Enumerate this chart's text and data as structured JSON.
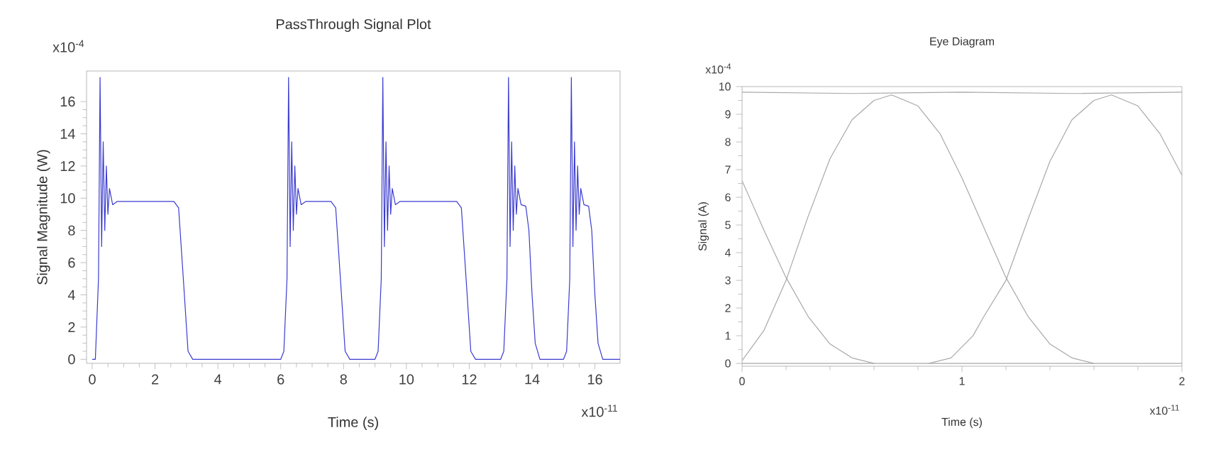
{
  "chart_data": [
    {
      "type": "line",
      "title": "PassThrough Signal Plot",
      "xlabel": "Time (s)",
      "ylabel": "Signal Magnitude (W)",
      "xlim": [
        -0.18,
        16.8
      ],
      "ylim": [
        -0.25,
        17.9
      ],
      "xticks": [
        0,
        2,
        4,
        6,
        8,
        10,
        12,
        14,
        16
      ],
      "yticks": [
        0,
        2,
        4,
        6,
        8,
        10,
        12,
        14,
        16
      ],
      "annotations": [
        "x10$^{-4}$",
        "x10$^{-11}$"
      ],
      "series": [
        {
          "color": "#3b3bd0",
          "x": [
            0,
            0.1,
            0.2,
            0.25,
            0.3,
            0.35,
            0.4,
            0.45,
            0.5,
            0.55,
            0.65,
            0.8,
            2.6,
            2.75,
            2.9,
            3.05,
            3.2,
            6.0,
            6.1,
            6.2,
            6.25,
            6.3,
            6.35,
            6.4,
            6.45,
            6.5,
            6.55,
            6.65,
            6.8,
            7.6,
            7.75,
            7.9,
            8.05,
            8.2,
            9.0,
            9.1,
            9.2,
            9.25,
            9.3,
            9.35,
            9.4,
            9.45,
            9.5,
            9.55,
            9.65,
            9.8,
            11.6,
            11.75,
            11.9,
            12.05,
            12.2,
            13.0,
            13.1,
            13.2,
            13.25,
            13.3,
            13.35,
            13.4,
            13.45,
            13.5,
            13.55,
            13.65,
            13.8,
            13.9,
            14.0,
            14.1,
            14.25,
            15.0,
            15.1,
            15.2,
            15.25,
            15.3,
            15.35,
            15.4,
            15.45,
            15.5,
            15.55,
            15.65,
            15.8,
            15.9,
            16.0,
            16.1,
            16.25,
            16.8
          ],
          "values": [
            0,
            0,
            5,
            17.5,
            7,
            13.5,
            8,
            12,
            9,
            10.6,
            9.6,
            9.8,
            9.8,
            9.4,
            5,
            0.5,
            0,
            0,
            0.5,
            5,
            17.5,
            7,
            13.5,
            8,
            12,
            9,
            10.6,
            9.6,
            9.8,
            9.8,
            9.4,
            5,
            0.5,
            0,
            0,
            0.5,
            5,
            17.5,
            7,
            13.5,
            8,
            12,
            9,
            10.6,
            9.6,
            9.8,
            9.8,
            9.4,
            5,
            0.5,
            0,
            0,
            0.5,
            5,
            17.5,
            7,
            13.5,
            8,
            12,
            9,
            10.6,
            9.6,
            9.5,
            8,
            4,
            1,
            0,
            0,
            0.5,
            5,
            17.5,
            7,
            13.5,
            8,
            12,
            9,
            10.6,
            9.6,
            9.5,
            8,
            4,
            1,
            0,
            0
          ]
        }
      ]
    },
    {
      "type": "line",
      "title": "Eye Diagram",
      "xlabel": "Time (s)",
      "ylabel": "Signal (A)",
      "xlim": [
        0,
        2
      ],
      "ylim": [
        -0.1,
        10
      ],
      "xticks": [
        0,
        1,
        2
      ],
      "yticks": [
        0,
        1,
        2,
        3,
        4,
        5,
        6,
        7,
        8,
        9,
        10
      ],
      "annotations": [
        "x10$^{-4}$",
        "x10$^{-11}$"
      ],
      "series": [
        {
          "color": "#a8a8a8",
          "x": [
            0,
            0.5,
            1,
            1.5,
            2
          ],
          "values": [
            9.8,
            9.75,
            9.8,
            9.75,
            9.8
          ]
        },
        {
          "color": "#a8a8a8",
          "x": [
            0,
            0.5,
            1,
            1.5,
            2
          ],
          "values": [
            0,
            0,
            0,
            0,
            0
          ]
        },
        {
          "color": "#a8a8a8",
          "x": [
            0,
            0.1,
            0.2,
            0.3,
            0.4,
            0.5,
            0.6
          ],
          "values": [
            6.6,
            4.8,
            3.1,
            1.7,
            0.7,
            0.2,
            0
          ]
        },
        {
          "color": "#a8a8a8",
          "x": [
            0,
            0.1,
            0.2,
            0.3,
            0.4,
            0.5,
            0.6,
            0.68,
            0.8,
            0.9,
            1.0,
            1.1,
            1.2,
            1.3,
            1.4,
            1.5,
            1.6
          ],
          "values": [
            0.1,
            1.2,
            3,
            5.3,
            7.4,
            8.8,
            9.5,
            9.7,
            9.3,
            8.3,
            6.7,
            4.9,
            3.1,
            1.7,
            0.7,
            0.2,
            0
          ]
        },
        {
          "color": "#a8a8a8",
          "x": [
            0.85,
            0.95,
            1.05,
            1.1,
            1.2,
            1.3,
            1.4,
            1.5,
            1.6,
            1.68,
            1.8,
            1.9,
            2.0
          ],
          "values": [
            0,
            0.2,
            1,
            1.7,
            3,
            5.2,
            7.3,
            8.8,
            9.5,
            9.7,
            9.3,
            8.3,
            6.8
          ]
        }
      ]
    }
  ]
}
